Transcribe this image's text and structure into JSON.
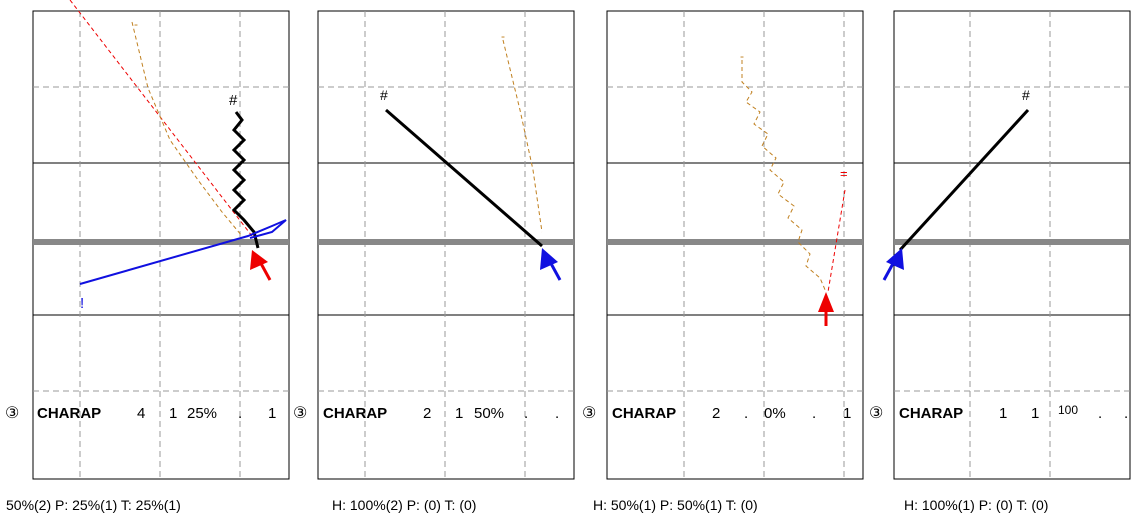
{
  "panels": [
    {
      "circle": "③",
      "name": "CHARAP",
      "stats": [
        "4",
        "1",
        "25%",
        ".",
        "1"
      ],
      "marks": {
        "black_path": "#",
        "blue_path": "!"
      },
      "footer": "50%(2)  P: 25%(1)  T: 25%(1)"
    },
    {
      "circle": "③",
      "name": "CHARAP",
      "stats": [
        "2",
        "1",
        "50%",
        ".",
        "."
      ],
      "marks": {
        "black_path": "#",
        "dashed_path": "-"
      },
      "footer": "H: 100%(2)  P: (0)  T: (0)"
    },
    {
      "circle": "③",
      "name": "CHARAP",
      "stats": [
        "2",
        ".",
        "0%",
        ".",
        "1"
      ],
      "marks": {
        "dashed_path": "-",
        "red_path": "="
      },
      "footer": "H: 50%(1)  P: 50%(1)  T: (0)"
    },
    {
      "circle": "③",
      "name": "CHARAP",
      "stats": [
        "1",
        "1",
        "100",
        ".",
        "."
      ],
      "marks": {
        "black_path": "#"
      },
      "footer": "H: 100%(1)  P: (0)  T: (0)"
    }
  ],
  "colors": {
    "black": "#000000",
    "blue": "#1010e0",
    "red": "#ee0000",
    "orange": "#c08020",
    "band": "#888888"
  }
}
